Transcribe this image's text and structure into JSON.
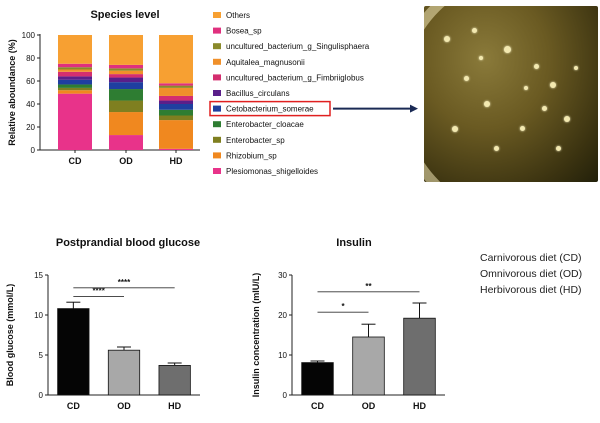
{
  "chart_data": [
    {
      "type": "stacked-bar",
      "title": "Species level",
      "ylabel": "Relative aboundance (%)",
      "ylim": [
        0,
        100
      ],
      "yticks": [
        0,
        20,
        40,
        60,
        80,
        100
      ],
      "categories": [
        "CD",
        "OD",
        "HD"
      ],
      "series": [
        {
          "name": "Plesiomonas_shigelloides",
          "color": "#e8338a",
          "values": [
            49,
            13,
            1
          ]
        },
        {
          "name": "Rhizobium_sp",
          "color": "#f0881f",
          "values": [
            3,
            20,
            25
          ]
        },
        {
          "name": "Enterobacter_sp",
          "color": "#7f7f20",
          "values": [
            2,
            10,
            4
          ]
        },
        {
          "name": "Enterobacter_cloacae",
          "color": "#2e7d32",
          "values": [
            3,
            10,
            5
          ]
        },
        {
          "name": "Cetobacterium_somerae",
          "color": "#1f3fa0",
          "values": [
            4,
            6,
            5
          ]
        },
        {
          "name": "Bacillus_circulans",
          "color": "#5a1f8a",
          "values": [
            3,
            4,
            3
          ]
        },
        {
          "name": "uncultured_bacterium_g_Fimbriiglobus",
          "color": "#d42e6f",
          "values": [
            4,
            3,
            4
          ]
        },
        {
          "name": "Aquitalea_magnusonii",
          "color": "#f0902a",
          "values": [
            2,
            3,
            7
          ]
        },
        {
          "name": "uncultured_bacterium_g_Singulisphaera",
          "color": "#8a8a2a",
          "values": [
            2,
            2,
            2
          ]
        },
        {
          "name": "Bosea_sp",
          "color": "#e0307e",
          "values": [
            3,
            3,
            2
          ]
        },
        {
          "name": "Others",
          "color": "#f7a032",
          "values": [
            25,
            26,
            42
          ]
        }
      ],
      "legend_order": [
        "Others",
        "Bosea_sp",
        "uncultured_bacterium_g_Singulisphaera",
        "Aquitalea_magnusonii",
        "uncultured_bacterium_g_Fimbriiglobus",
        "Bacillus_circulans",
        "Cetobacterium_somerae",
        "Enterobacter_cloacae",
        "Enterobacter_sp",
        "Rhizobium_sp",
        "Plesiomonas_shigelloides"
      ],
      "highlighted": "Cetobacterium_somerae",
      "highlight_color": "#e02020",
      "arrow_color": "#1a2a55"
    },
    {
      "type": "bar",
      "title": "Postprandial blood glucose",
      "ylabel": "Blood glucose (mmol/L)",
      "ylim": [
        0,
        15
      ],
      "yticks": [
        0,
        5,
        10,
        15
      ],
      "categories": [
        "CD",
        "OD",
        "HD"
      ],
      "values": [
        10.8,
        5.6,
        3.7
      ],
      "errors": [
        0.8,
        0.4,
        0.3
      ],
      "colors": [
        "#050505",
        "#a8a8a8",
        "#6e6e6e"
      ],
      "significance": [
        {
          "from": "CD",
          "to": "OD",
          "label": "****",
          "level": 12.3
        },
        {
          "from": "CD",
          "to": "HD",
          "label": "****",
          "level": 13.4
        }
      ]
    },
    {
      "type": "bar",
      "title": "Insulin",
      "ylabel": "Insulin concentration (mIU/L)",
      "ylim": [
        0,
        30
      ],
      "yticks": [
        0,
        10,
        20,
        30
      ],
      "categories": [
        "CD",
        "OD",
        "HD"
      ],
      "values": [
        8.1,
        14.5,
        19.2
      ],
      "errors": [
        0.4,
        3.2,
        3.8
      ],
      "colors": [
        "#050505",
        "#a8a8a8",
        "#6e6e6e"
      ],
      "significance": [
        {
          "from": "CD",
          "to": "OD",
          "label": "*",
          "level": 20.7
        },
        {
          "from": "CD",
          "to": "HD",
          "label": "**",
          "level": 25.8
        }
      ]
    }
  ],
  "diet_legend": [
    "Carnivorous diet (CD)",
    "Omnivorous diet (OD)",
    "Herbivorous diet (HD)"
  ]
}
